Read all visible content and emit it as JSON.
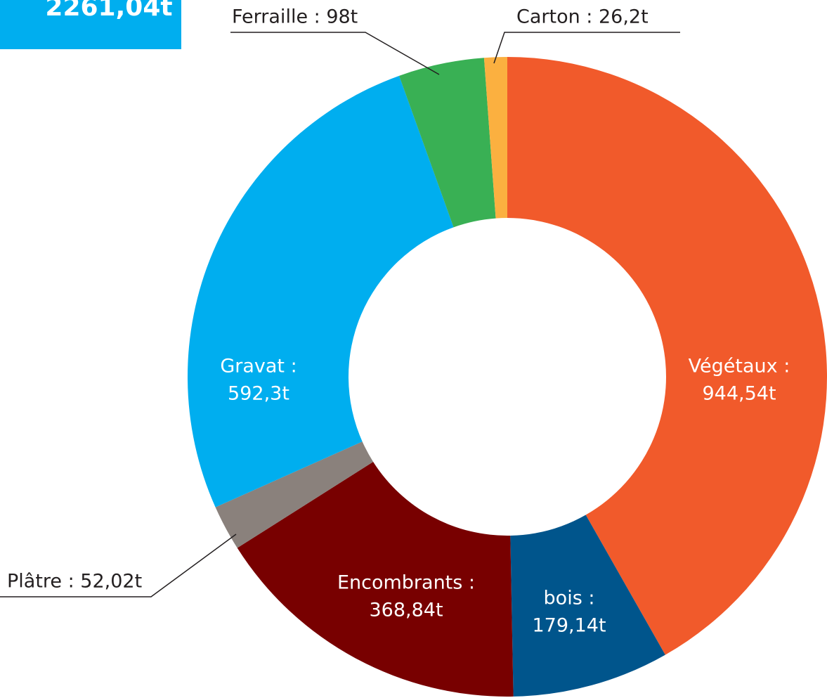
{
  "chart_data": {
    "type": "donut",
    "title": "2261,04t",
    "values": [
      944.54,
      179.14,
      368.84,
      52.02,
      592.3,
      98,
      26.2
    ],
    "value_labels": [
      [
        "Végétaux :",
        "944,54t"
      ],
      [
        "bois :",
        "179,14t"
      ],
      [
        "Encombrants :",
        "368,84t"
      ],
      [
        "Plâtre : 52,02t"
      ],
      [
        "Gravat :",
        "592,3t"
      ],
      [
        "Ferraille : 98t"
      ],
      [
        "Carton : 26,2t"
      ]
    ],
    "colors": [
      "#f15a2b",
      "#00558c",
      "#780000",
      "#8a817c",
      "#00aeef",
      "#39b054",
      "#fbb040"
    ]
  }
}
